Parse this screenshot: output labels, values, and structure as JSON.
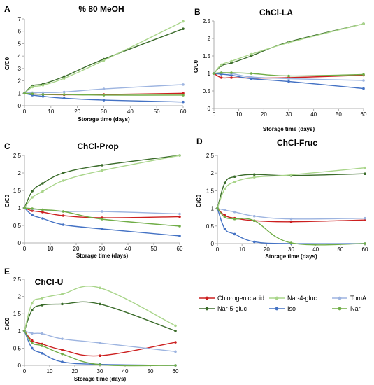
{
  "chart_data": [
    {
      "panel": "A",
      "type": "line",
      "title": "% 80 MeOH",
      "xlabel": "Storage time (days)",
      "ylabel": "C/C0",
      "xlim": [
        0,
        60
      ],
      "ylim": [
        0,
        7
      ],
      "xticks": [
        0,
        10,
        20,
        30,
        40,
        50,
        60
      ],
      "yticks": [
        0,
        1,
        2,
        3,
        4,
        5,
        6,
        7
      ],
      "x": [
        0,
        3,
        7,
        15,
        30,
        60
      ],
      "series": [
        {
          "name": "Chlorogenic acid",
          "color": "#cc1f1f",
          "values": [
            1,
            0.95,
            0.9,
            0.88,
            0.9,
            1.0
          ]
        },
        {
          "name": "Nar-5-gluc",
          "color": "#3a6b2a",
          "values": [
            1,
            1.6,
            1.75,
            2.35,
            3.75,
            6.2
          ]
        },
        {
          "name": "Nar-4-gluc",
          "color": "#a9d58a",
          "values": [
            1,
            1.5,
            1.65,
            2.2,
            3.65,
            6.8
          ]
        },
        {
          "name": "Iso",
          "color": "#4472c4",
          "values": [
            1,
            0.85,
            0.75,
            0.6,
            0.45,
            0.3
          ]
        },
        {
          "name": "TomA",
          "color": "#9db4e0",
          "values": [
            1,
            1.05,
            1.05,
            1.1,
            1.35,
            1.7
          ]
        },
        {
          "name": "Nar",
          "color": "#70ad47",
          "values": [
            1,
            0.95,
            0.9,
            0.9,
            0.85,
            0.85
          ]
        }
      ]
    },
    {
      "panel": "B",
      "type": "line",
      "title": "ChCl-LA",
      "xlabel": "Storage time (days)",
      "ylabel": "C/C0",
      "xlim": [
        0,
        60
      ],
      "ylim": [
        0,
        2.5
      ],
      "xticks": [
        0,
        10,
        20,
        30,
        40,
        50,
        60
      ],
      "yticks": [
        0,
        0.5,
        1,
        1.5,
        2,
        2.5
      ],
      "x": [
        0,
        3,
        7,
        15,
        30,
        60
      ],
      "series": [
        {
          "name": "Chlorogenic acid",
          "color": "#cc1f1f",
          "values": [
            1,
            0.88,
            0.88,
            0.87,
            0.88,
            0.95
          ]
        },
        {
          "name": "Nar-5-gluc",
          "color": "#3a6b2a",
          "values": [
            1,
            1.22,
            1.3,
            1.5,
            1.9,
            2.42
          ]
        },
        {
          "name": "Nar-4-gluc",
          "color": "#a9d58a",
          "values": [
            1,
            1.25,
            1.35,
            1.55,
            1.88,
            2.42
          ]
        },
        {
          "name": "Iso",
          "color": "#4472c4",
          "values": [
            1,
            0.98,
            0.95,
            0.85,
            0.77,
            0.57
          ]
        },
        {
          "name": "TomA",
          "color": "#9db4e0",
          "values": [
            1,
            1.02,
            1.0,
            0.9,
            0.85,
            0.8
          ]
        },
        {
          "name": "Nar",
          "color": "#70ad47",
          "values": [
            1,
            1.02,
            1.02,
            1.0,
            0.93,
            0.97
          ]
        }
      ]
    },
    {
      "panel": "C",
      "type": "line",
      "title": "ChCl-Prop",
      "xlabel": "Storage time (days)",
      "ylabel": "C/C0",
      "xlim": [
        0,
        60
      ],
      "ylim": [
        0,
        2.5
      ],
      "xticks": [
        0,
        10,
        20,
        30,
        40,
        50,
        60
      ],
      "yticks": [
        0,
        0.5,
        1,
        1.5,
        2,
        2.5
      ],
      "x": [
        0,
        3,
        7,
        15,
        30,
        60
      ],
      "series": [
        {
          "name": "Chlorogenic acid",
          "color": "#cc1f1f",
          "values": [
            1,
            0.92,
            0.88,
            0.78,
            0.72,
            0.75
          ]
        },
        {
          "name": "Nar-5-gluc",
          "color": "#3a6b2a",
          "values": [
            1,
            1.48,
            1.7,
            2.0,
            2.22,
            2.5
          ]
        },
        {
          "name": "Nar-4-gluc",
          "color": "#a9d58a",
          "values": [
            1,
            1.3,
            1.47,
            1.78,
            2.07,
            2.5
          ]
        },
        {
          "name": "Iso",
          "color": "#4472c4",
          "values": [
            1,
            0.8,
            0.7,
            0.52,
            0.4,
            0.2
          ]
        },
        {
          "name": "TomA",
          "color": "#9db4e0",
          "values": [
            1,
            0.97,
            0.95,
            0.9,
            0.9,
            0.83
          ]
        },
        {
          "name": "Nar",
          "color": "#70ad47",
          "values": [
            1,
            0.98,
            0.95,
            0.9,
            0.68,
            0.48
          ]
        }
      ]
    },
    {
      "panel": "D",
      "type": "line",
      "title": "ChCl-Fruc",
      "xlabel": "Storage time (days)",
      "ylabel": "C/C0",
      "xlim": [
        0,
        60
      ],
      "ylim": [
        0,
        2.5
      ],
      "xticks": [
        0,
        10,
        20,
        30,
        40,
        50,
        60
      ],
      "yticks": [
        0,
        0.5,
        1,
        1.5,
        2,
        2.5
      ],
      "x": [
        0,
        3,
        7,
        15,
        30,
        60
      ],
      "series": [
        {
          "name": "Chlorogenic acid",
          "color": "#cc1f1f",
          "values": [
            1,
            0.8,
            0.72,
            0.65,
            0.62,
            0.67
          ]
        },
        {
          "name": "Nar-5-gluc",
          "color": "#3a6b2a",
          "values": [
            1,
            1.72,
            1.9,
            1.96,
            1.93,
            1.98
          ]
        },
        {
          "name": "Nar-4-gluc",
          "color": "#a9d58a",
          "values": [
            1,
            1.55,
            1.75,
            1.88,
            1.95,
            2.15
          ]
        },
        {
          "name": "Iso",
          "color": "#4472c4",
          "values": [
            1,
            0.42,
            0.27,
            0.05,
            0.0,
            0.0
          ]
        },
        {
          "name": "TomA",
          "color": "#9db4e0",
          "values": [
            1,
            0.95,
            0.9,
            0.78,
            0.7,
            0.72
          ]
        },
        {
          "name": "Nar",
          "color": "#70ad47",
          "values": [
            1,
            0.75,
            0.7,
            0.65,
            0.02,
            0.0
          ]
        }
      ]
    },
    {
      "panel": "E",
      "type": "line",
      "title": "ChCl-U",
      "xlabel": "Storage time (days)",
      "ylabel": "C/C0",
      "xlim": [
        0,
        60
      ],
      "ylim": [
        0,
        2.5
      ],
      "xticks": [
        0,
        10,
        20,
        30,
        40,
        50,
        60
      ],
      "yticks": [
        0,
        0.5,
        1,
        1.5,
        2,
        2.5
      ],
      "x": [
        0,
        3,
        7,
        15,
        30,
        60
      ],
      "series": [
        {
          "name": "Chlorogenic acid",
          "color": "#cc1f1f",
          "values": [
            1,
            0.72,
            0.62,
            0.45,
            0.28,
            0.67
          ]
        },
        {
          "name": "Nar-5-gluc",
          "color": "#3a6b2a",
          "values": [
            1,
            1.6,
            1.75,
            1.78,
            1.78,
            1.0
          ]
        },
        {
          "name": "Nar-4-gluc",
          "color": "#a9d58a",
          "values": [
            1,
            1.8,
            1.95,
            2.07,
            2.25,
            1.15
          ]
        },
        {
          "name": "Iso",
          "color": "#4472c4",
          "values": [
            1,
            0.5,
            0.35,
            0.1,
            0.03,
            0.0
          ]
        },
        {
          "name": "TomA",
          "color": "#9db4e0",
          "values": [
            1,
            0.93,
            0.92,
            0.77,
            0.65,
            0.4
          ]
        },
        {
          "name": "Nar",
          "color": "#70ad47",
          "values": [
            1,
            0.65,
            0.57,
            0.33,
            0.02,
            0.0
          ]
        }
      ]
    }
  ],
  "legend": [
    {
      "label": "Chlorogenic acid",
      "color": "#cc1f1f"
    },
    {
      "label": "Nar-4-gluc",
      "color": "#a9d58a"
    },
    {
      "label": "TomA",
      "color": "#9db4e0"
    },
    {
      "label": "Nar-5-gluc",
      "color": "#3a6b2a"
    },
    {
      "label": "Iso",
      "color": "#4472c4"
    },
    {
      "label": "Nar",
      "color": "#70ad47"
    }
  ]
}
